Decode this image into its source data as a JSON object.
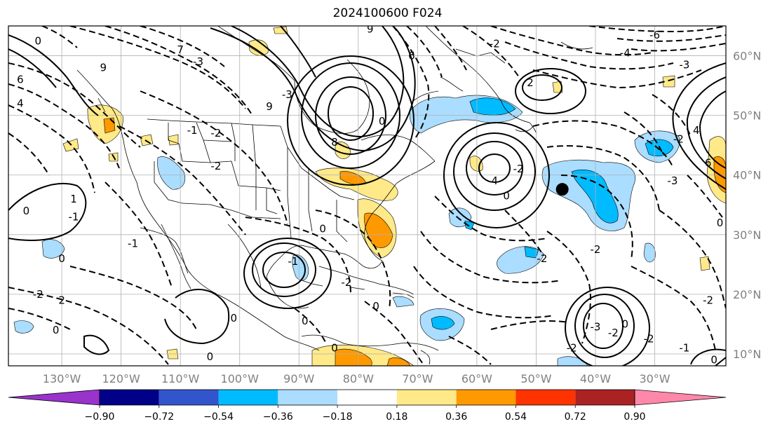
{
  "title": "2024100600 F024",
  "lon_ticks": [
    {
      "label": "130°W",
      "lon": -130
    },
    {
      "label": "120°W",
      "lon": -120
    },
    {
      "label": "110°W",
      "lon": -110
    },
    {
      "label": "100°W",
      "lon": -100
    },
    {
      "label": "90°W",
      "lon": -90
    },
    {
      "label": "80°W",
      "lon": -80
    },
    {
      "label": "70°W",
      "lon": -70
    },
    {
      "label": "60°W",
      "lon": -60
    },
    {
      "label": "50°W",
      "lon": -50
    },
    {
      "label": "40°W",
      "lon": -40
    },
    {
      "label": "30°W",
      "lon": -30
    }
  ],
  "lat_ticks": [
    {
      "label": "60°N",
      "lat": 60
    },
    {
      "label": "50°N",
      "lat": 50
    },
    {
      "label": "40°N",
      "lat": 40
    },
    {
      "label": "30°N",
      "lat": 30
    },
    {
      "label": "20°N",
      "lat": 20
    },
    {
      "label": "10°N",
      "lat": 10
    }
  ],
  "extent": {
    "lon_min": -139,
    "lon_max": -18,
    "lat_min": 8,
    "lat_max": 65
  },
  "marker": {
    "lon": -45.6,
    "lat": 37.6,
    "color": "#000000"
  },
  "colorbar": {
    "colors": [
      "#9933cc",
      "#000088",
      "#3355cc",
      "#00bbff",
      "#aaddff",
      "#ffffff",
      "#ffe988",
      "#ff9900",
      "#ff3300",
      "#aa2222",
      "#ff88aa"
    ],
    "labels": [
      "−0.90",
      "−0.72",
      "−0.54",
      "−0.36",
      "−0.18",
      "0.18",
      "0.36",
      "0.54",
      "0.72",
      "0.90"
    ]
  },
  "contour_labels": [
    {
      "text": "0",
      "lon": -134,
      "lat": 62.5
    },
    {
      "text": "6",
      "lon": -137,
      "lat": 56
    },
    {
      "text": "4",
      "lon": -137,
      "lat": 52
    },
    {
      "text": "9",
      "lon": -123,
      "lat": 58
    },
    {
      "text": "-3",
      "lon": -107,
      "lat": 59
    },
    {
      "text": "7",
      "lon": -110,
      "lat": 61
    },
    {
      "text": "-3",
      "lon": -92,
      "lat": 53.5
    },
    {
      "text": "9",
      "lon": -95,
      "lat": 51.5
    },
    {
      "text": "8",
      "lon": -84,
      "lat": 45.5
    },
    {
      "text": "9",
      "lon": -78,
      "lat": 64.5
    },
    {
      "text": "6",
      "lon": -71,
      "lat": 60
    },
    {
      "text": "0",
      "lon": -76,
      "lat": 49
    },
    {
      "text": "-6",
      "lon": -30,
      "lat": 63.5
    },
    {
      "text": "-4",
      "lon": -35,
      "lat": 60.5
    },
    {
      "text": "-3",
      "lon": -25,
      "lat": 58.5
    },
    {
      "text": "-2",
      "lon": -57,
      "lat": 62
    },
    {
      "text": "2",
      "lon": -51,
      "lat": 55.5
    },
    {
      "text": "4",
      "lon": -23,
      "lat": 47.5
    },
    {
      "text": "6",
      "lon": -21,
      "lat": 42
    },
    {
      "text": "-3",
      "lon": -27,
      "lat": 39
    },
    {
      "text": "-2",
      "lon": -26,
      "lat": 46
    },
    {
      "text": "4",
      "lon": -57,
      "lat": 39
    },
    {
      "text": "0",
      "lon": -55,
      "lat": 36.5
    },
    {
      "text": "-2",
      "lon": -53,
      "lat": 41
    },
    {
      "text": "-1",
      "lon": -108,
      "lat": 47.5
    },
    {
      "text": "-2",
      "lon": -104,
      "lat": 47
    },
    {
      "text": "-2",
      "lon": -104,
      "lat": 41.5
    },
    {
      "text": "1",
      "lon": -128,
      "lat": 36
    },
    {
      "text": "0",
      "lon": -136,
      "lat": 34
    },
    {
      "text": "-1",
      "lon": -128,
      "lat": 33
    },
    {
      "text": "-1",
      "lon": -118,
      "lat": 28.5
    },
    {
      "text": "0",
      "lon": -130,
      "lat": 26
    },
    {
      "text": "0",
      "lon": -86,
      "lat": 31
    },
    {
      "text": "-1",
      "lon": -91,
      "lat": 25.5
    },
    {
      "text": "-2",
      "lon": -82,
      "lat": 22
    },
    {
      "text": "0",
      "lon": -77,
      "lat": 18
    },
    {
      "text": "0",
      "lon": -89,
      "lat": 15.5
    },
    {
      "text": "0",
      "lon": -101,
      "lat": 16
    },
    {
      "text": "2",
      "lon": -130,
      "lat": 19
    },
    {
      "text": "0",
      "lon": -131,
      "lat": 14
    },
    {
      "text": "-2",
      "lon": -134,
      "lat": 20
    },
    {
      "text": "0",
      "lon": -105,
      "lat": 9.5
    },
    {
      "text": "0",
      "lon": -84,
      "lat": 11
    },
    {
      "text": "-2",
      "lon": -49,
      "lat": 26
    },
    {
      "text": "-2",
      "lon": -40,
      "lat": 27.5
    },
    {
      "text": "-3",
      "lon": -40,
      "lat": 14.5
    },
    {
      "text": "-2",
      "lon": -37,
      "lat": 13.5
    },
    {
      "text": "-2",
      "lon": -31,
      "lat": 12.5
    },
    {
      "text": "0",
      "lon": -35,
      "lat": 15
    },
    {
      "text": "-1",
      "lon": -25,
      "lat": 11
    },
    {
      "text": "-2",
      "lon": -21,
      "lat": 19
    },
    {
      "text": "0",
      "lon": -20,
      "lat": 9
    },
    {
      "text": "-2",
      "lon": -44,
      "lat": 11
    },
    {
      "text": "0",
      "lon": -19,
      "lat": 32
    }
  ]
}
